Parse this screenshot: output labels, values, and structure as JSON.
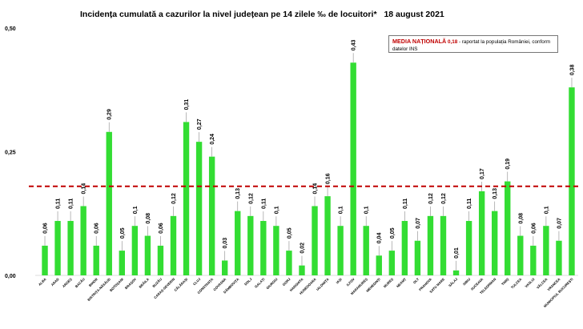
{
  "chart_data": {
    "type": "bar",
    "title": "Incidența cumulată a cazurilor la nivel județean pe 14 zilele ‰ de locuitori*",
    "date": "18 august 2021",
    "ylim": [
      0,
      0.5
    ],
    "yticks": [
      "0,00",
      "0,25",
      "0,50"
    ],
    "ytick_values": [
      0,
      0.25,
      0.5
    ],
    "grid": false,
    "bar_color": "#33dd33",
    "reference_line": {
      "value": 0.18,
      "color": "#c00000",
      "style": "dashed"
    },
    "note": {
      "bold_text": "MEDIA NAȚIONALĂ",
      "value_text": "0,18",
      "text": "- raportat la populația României, conform datelor INS"
    },
    "categories": [
      "ALBA",
      "ARAD",
      "ARGEȘ",
      "BACĂU",
      "BIHOR",
      "BISTRIȚA-NĂSĂUD",
      "BOTOȘANI",
      "BRAȘOV",
      "BRĂILA",
      "BUZĂU",
      "CARAȘ-SEVERIN",
      "CĂLĂRAȘI",
      "CLUJ",
      "CONSTANȚA",
      "COVASNA",
      "DÂMBOVIȚA",
      "DOLJ",
      "GALAȚI",
      "GIURGIU",
      "GORJ",
      "HARGHITA",
      "HUNEDOARA",
      "IALOMIȚA",
      "IAȘI",
      "ILFOV",
      "MARAMUREȘ",
      "MEHEDINȚI",
      "MUREȘ",
      "NEAMȚ",
      "OLT",
      "PRAHOVA",
      "SATU MARE",
      "SĂLAJ",
      "SIBIU",
      "SUCEAVA",
      "TELEORMAN",
      "TIMIȘ",
      "TULCEA",
      "VASLUI",
      "VÂLCEA",
      "VRANCEA",
      "MUNICIPIUL BUCUREȘTI"
    ],
    "values": [
      0.06,
      0.11,
      0.11,
      0.14,
      0.06,
      0.29,
      0.05,
      0.1,
      0.08,
      0.06,
      0.12,
      0.31,
      0.27,
      0.24,
      0.03,
      0.13,
      0.12,
      0.11,
      0.1,
      0.05,
      0.02,
      0.14,
      0.16,
      0.1,
      0.43,
      0.1,
      0.04,
      0.05,
      0.11,
      0.07,
      0.12,
      0.12,
      0.01,
      0.11,
      0.17,
      0.13,
      0.19,
      0.08,
      0.06,
      0.1,
      0.07,
      0.38
    ],
    "value_labels": [
      "0,06",
      "0,11",
      "0,11",
      "0,14",
      "0,06",
      "0,29",
      "0,05",
      "0,1",
      "0,08",
      "0,06",
      "0,12",
      "0,31",
      "0,27",
      "0,24",
      "0,03",
      "0,13",
      "0,12",
      "0,11",
      "0,1",
      "0,05",
      "0,02",
      "0,14",
      "0,16",
      "0,1",
      "0,43",
      "0,1",
      "0,04",
      "0,05",
      "0,11",
      "0,07",
      "0,12",
      "0,12",
      "0,01",
      "0,11",
      "0,17",
      "0,13",
      "0,19",
      "0,08",
      "0,06",
      "0,1",
      "0,07",
      "0,38"
    ]
  }
}
